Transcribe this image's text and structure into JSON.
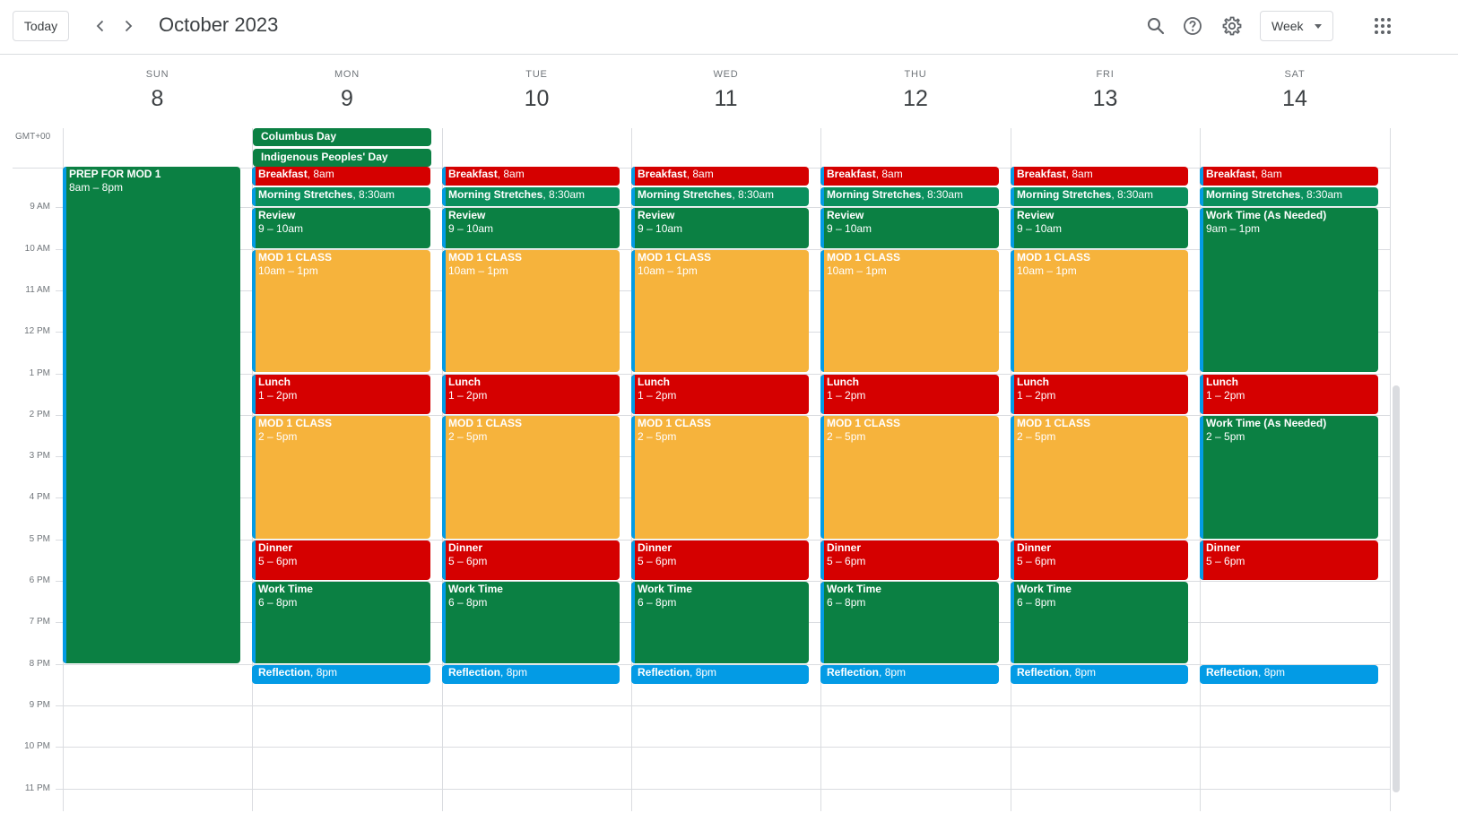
{
  "header": {
    "today_label": "Today",
    "month_title": "October 2023",
    "view_label": "Week",
    "icons": [
      "chevron-left-icon",
      "chevron-right-icon",
      "search-icon",
      "help-icon",
      "settings-gear-icon",
      "apps-grid-icon"
    ]
  },
  "timezone": "GMT+00",
  "days": [
    {
      "name": "SUN",
      "num": "8"
    },
    {
      "name": "MON",
      "num": "9"
    },
    {
      "name": "TUE",
      "num": "10"
    },
    {
      "name": "WED",
      "num": "11"
    },
    {
      "name": "THU",
      "num": "12"
    },
    {
      "name": "FRI",
      "num": "13"
    },
    {
      "name": "SAT",
      "num": "14"
    }
  ],
  "hours": [
    "9 AM",
    "10 AM",
    "11 AM",
    "12 PM",
    "1 PM",
    "2 PM",
    "3 PM",
    "4 PM",
    "5 PM",
    "6 PM",
    "7 PM",
    "8 PM",
    "9 PM",
    "10 PM",
    "11 PM"
  ],
  "allday": [
    {
      "day": 1,
      "title": "Columbus Day"
    },
    {
      "day": 1,
      "title": "Indigenous Peoples' Day"
    }
  ],
  "colors": {
    "red": "#d50000",
    "green": "#0b8043",
    "teal": "#0b8f5d",
    "orange": "#f6b33c",
    "blue": "#039be5"
  },
  "events": [
    {
      "day": 0,
      "start": 8,
      "end": 20,
      "title": "PREP FOR MOD 1",
      "time": "8am – 8pm",
      "color": "green",
      "inline": false
    },
    {
      "day": 1,
      "start": 8,
      "end": 8.5,
      "title": "Breakfast",
      "time": "8am",
      "color": "red",
      "inline": true
    },
    {
      "day": 1,
      "start": 8.5,
      "end": 9,
      "title": "Morning Stretches",
      "time": "8:30am",
      "color": "teal",
      "inline": true
    },
    {
      "day": 1,
      "start": 9,
      "end": 10,
      "title": "Review",
      "time": "9 – 10am",
      "color": "green",
      "inline": false
    },
    {
      "day": 1,
      "start": 10,
      "end": 13,
      "title": "MOD 1 CLASS",
      "time": "10am – 1pm",
      "color": "orange",
      "inline": false
    },
    {
      "day": 1,
      "start": 13,
      "end": 14,
      "title": "Lunch",
      "time": "1 – 2pm",
      "color": "red",
      "inline": false
    },
    {
      "day": 1,
      "start": 14,
      "end": 17,
      "title": "MOD 1 CLASS",
      "time": "2 – 5pm",
      "color": "orange",
      "inline": false
    },
    {
      "day": 1,
      "start": 17,
      "end": 18,
      "title": "Dinner",
      "time": "5 – 6pm",
      "color": "red",
      "inline": false
    },
    {
      "day": 1,
      "start": 18,
      "end": 20,
      "title": "Work Time",
      "time": "6 – 8pm",
      "color": "green",
      "inline": false
    },
    {
      "day": 1,
      "start": 20,
      "end": 20.5,
      "title": "Reflection",
      "time": "8pm",
      "color": "blue",
      "inline": true
    },
    {
      "day": 2,
      "start": 8,
      "end": 8.5,
      "title": "Breakfast",
      "time": "8am",
      "color": "red",
      "inline": true
    },
    {
      "day": 2,
      "start": 8.5,
      "end": 9,
      "title": "Morning Stretches",
      "time": "8:30am",
      "color": "teal",
      "inline": true
    },
    {
      "day": 2,
      "start": 9,
      "end": 10,
      "title": "Review",
      "time": "9 – 10am",
      "color": "green",
      "inline": false
    },
    {
      "day": 2,
      "start": 10,
      "end": 13,
      "title": "MOD 1 CLASS",
      "time": "10am – 1pm",
      "color": "orange",
      "inline": false
    },
    {
      "day": 2,
      "start": 13,
      "end": 14,
      "title": "Lunch",
      "time": "1 – 2pm",
      "color": "red",
      "inline": false
    },
    {
      "day": 2,
      "start": 14,
      "end": 17,
      "title": "MOD 1 CLASS",
      "time": "2 – 5pm",
      "color": "orange",
      "inline": false
    },
    {
      "day": 2,
      "start": 17,
      "end": 18,
      "title": "Dinner",
      "time": "5 – 6pm",
      "color": "red",
      "inline": false
    },
    {
      "day": 2,
      "start": 18,
      "end": 20,
      "title": "Work Time",
      "time": "6 – 8pm",
      "color": "green",
      "inline": false
    },
    {
      "day": 2,
      "start": 20,
      "end": 20.5,
      "title": "Reflection",
      "time": "8pm",
      "color": "blue",
      "inline": true
    },
    {
      "day": 3,
      "start": 8,
      "end": 8.5,
      "title": "Breakfast",
      "time": "8am",
      "color": "red",
      "inline": true
    },
    {
      "day": 3,
      "start": 8.5,
      "end": 9,
      "title": "Morning Stretches",
      "time": "8:30am",
      "color": "teal",
      "inline": true
    },
    {
      "day": 3,
      "start": 9,
      "end": 10,
      "title": "Review",
      "time": "9 – 10am",
      "color": "green",
      "inline": false
    },
    {
      "day": 3,
      "start": 10,
      "end": 13,
      "title": "MOD 1 CLASS",
      "time": "10am – 1pm",
      "color": "orange",
      "inline": false
    },
    {
      "day": 3,
      "start": 13,
      "end": 14,
      "title": "Lunch",
      "time": "1 – 2pm",
      "color": "red",
      "inline": false
    },
    {
      "day": 3,
      "start": 14,
      "end": 17,
      "title": "MOD 1 CLASS",
      "time": "2 – 5pm",
      "color": "orange",
      "inline": false
    },
    {
      "day": 3,
      "start": 17,
      "end": 18,
      "title": "Dinner",
      "time": "5 – 6pm",
      "color": "red",
      "inline": false
    },
    {
      "day": 3,
      "start": 18,
      "end": 20,
      "title": "Work Time",
      "time": "6 – 8pm",
      "color": "green",
      "inline": false
    },
    {
      "day": 3,
      "start": 20,
      "end": 20.5,
      "title": "Reflection",
      "time": "8pm",
      "color": "blue",
      "inline": true
    },
    {
      "day": 4,
      "start": 8,
      "end": 8.5,
      "title": "Breakfast",
      "time": "8am",
      "color": "red",
      "inline": true
    },
    {
      "day": 4,
      "start": 8.5,
      "end": 9,
      "title": "Morning Stretches",
      "time": "8:30am",
      "color": "teal",
      "inline": true
    },
    {
      "day": 4,
      "start": 9,
      "end": 10,
      "title": "Review",
      "time": "9 – 10am",
      "color": "green",
      "inline": false
    },
    {
      "day": 4,
      "start": 10,
      "end": 13,
      "title": "MOD 1 CLASS",
      "time": "10am – 1pm",
      "color": "orange",
      "inline": false
    },
    {
      "day": 4,
      "start": 13,
      "end": 14,
      "title": "Lunch",
      "time": "1 – 2pm",
      "color": "red",
      "inline": false
    },
    {
      "day": 4,
      "start": 14,
      "end": 17,
      "title": "MOD 1 CLASS",
      "time": "2 – 5pm",
      "color": "orange",
      "inline": false
    },
    {
      "day": 4,
      "start": 17,
      "end": 18,
      "title": "Dinner",
      "time": "5 – 6pm",
      "color": "red",
      "inline": false
    },
    {
      "day": 4,
      "start": 18,
      "end": 20,
      "title": "Work Time",
      "time": "6 – 8pm",
      "color": "green",
      "inline": false
    },
    {
      "day": 4,
      "start": 20,
      "end": 20.5,
      "title": "Reflection",
      "time": "8pm",
      "color": "blue",
      "inline": true
    },
    {
      "day": 5,
      "start": 8,
      "end": 8.5,
      "title": "Breakfast",
      "time": "8am",
      "color": "red",
      "inline": true
    },
    {
      "day": 5,
      "start": 8.5,
      "end": 9,
      "title": "Morning Stretches",
      "time": "8:30am",
      "color": "teal",
      "inline": true
    },
    {
      "day": 5,
      "start": 9,
      "end": 10,
      "title": "Review",
      "time": "9 – 10am",
      "color": "green",
      "inline": false
    },
    {
      "day": 5,
      "start": 10,
      "end": 13,
      "title": "MOD 1 CLASS",
      "time": "10am – 1pm",
      "color": "orange",
      "inline": false
    },
    {
      "day": 5,
      "start": 13,
      "end": 14,
      "title": "Lunch",
      "time": "1 – 2pm",
      "color": "red",
      "inline": false
    },
    {
      "day": 5,
      "start": 14,
      "end": 17,
      "title": "MOD 1 CLASS",
      "time": "2 – 5pm",
      "color": "orange",
      "inline": false
    },
    {
      "day": 5,
      "start": 17,
      "end": 18,
      "title": "Dinner",
      "time": "5 – 6pm",
      "color": "red",
      "inline": false
    },
    {
      "day": 5,
      "start": 18,
      "end": 20,
      "title": "Work Time",
      "time": "6 – 8pm",
      "color": "green",
      "inline": false
    },
    {
      "day": 5,
      "start": 20,
      "end": 20.5,
      "title": "Reflection",
      "time": "8pm",
      "color": "blue",
      "inline": true
    },
    {
      "day": 6,
      "start": 8,
      "end": 8.5,
      "title": "Breakfast",
      "time": "8am",
      "color": "red",
      "inline": true
    },
    {
      "day": 6,
      "start": 8.5,
      "end": 9,
      "title": "Morning Stretches",
      "time": "8:30am",
      "color": "teal",
      "inline": true
    },
    {
      "day": 6,
      "start": 9,
      "end": 13,
      "title": "Work Time (As Needed)",
      "time": "9am – 1pm",
      "color": "green",
      "inline": false
    },
    {
      "day": 6,
      "start": 13,
      "end": 14,
      "title": "Lunch",
      "time": "1 – 2pm",
      "color": "red",
      "inline": false
    },
    {
      "day": 6,
      "start": 14,
      "end": 17,
      "title": "Work Time (As Needed)",
      "time": "2 – 5pm",
      "color": "green",
      "inline": false
    },
    {
      "day": 6,
      "start": 17,
      "end": 18,
      "title": "Dinner",
      "time": "5 – 6pm",
      "color": "red",
      "inline": false
    },
    {
      "day": 6,
      "start": 20,
      "end": 20.5,
      "title": "Reflection",
      "time": "8pm",
      "color": "blue",
      "inline": true
    }
  ]
}
